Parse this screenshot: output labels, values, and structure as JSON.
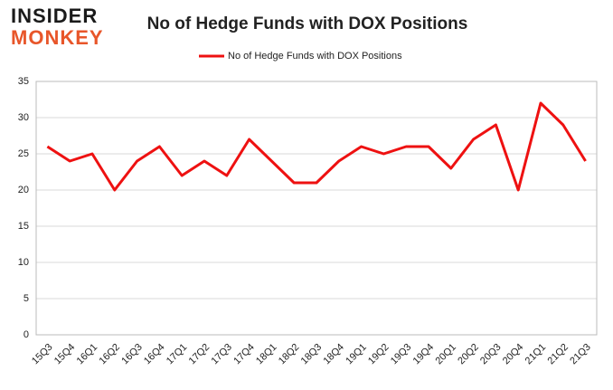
{
  "logo": {
    "line1": "INSIDER",
    "line2": "MONKEY"
  },
  "chart_data": {
    "type": "line",
    "title": "No of Hedge Funds with DOX Positions",
    "categories": [
      "15Q3",
      "15Q4",
      "16Q1",
      "16Q2",
      "16Q3",
      "16Q4",
      "17Q1",
      "17Q2",
      "17Q3",
      "17Q4",
      "18Q1",
      "18Q2",
      "18Q3",
      "18Q4",
      "19Q1",
      "19Q2",
      "19Q3",
      "19Q4",
      "20Q1",
      "20Q2",
      "20Q3",
      "20Q4",
      "21Q1",
      "21Q2",
      "21Q3"
    ],
    "series": [
      {
        "name": "No of Hedge Funds with DOX Positions",
        "color": "#ee1111",
        "values": [
          26,
          24,
          25,
          20,
          24,
          26,
          22,
          24,
          22,
          27,
          24,
          21,
          21,
          24,
          26,
          25,
          26,
          26,
          23,
          27,
          29,
          20,
          32,
          29,
          24
        ]
      }
    ],
    "ylim": [
      0,
      35
    ],
    "yticks": [
      0,
      5,
      10,
      15,
      20,
      25,
      30,
      35
    ],
    "grid": true,
    "legend": "top"
  }
}
